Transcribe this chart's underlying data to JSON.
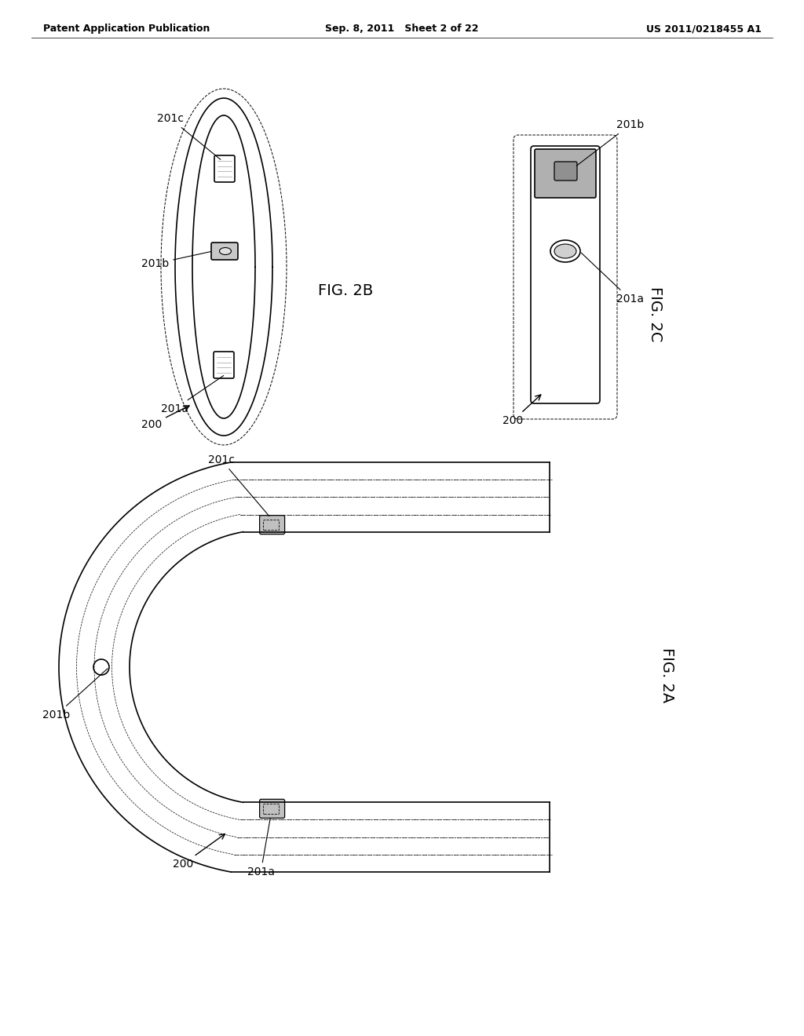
{
  "header_left": "Patent Application Publication",
  "header_center": "Sep. 8, 2011   Sheet 2 of 22",
  "header_right": "US 2011/0218455 A1",
  "fig2a_label": "FIG. 2A",
  "fig2b_label": "FIG. 2B",
  "fig2c_label": "FIG. 2C",
  "lc": "#000000",
  "bg": "#ffffff",
  "lw": 1.2,
  "dlw": 0.7,
  "header_fs": 9,
  "label_fs": 10,
  "fig_label_fs": 14
}
